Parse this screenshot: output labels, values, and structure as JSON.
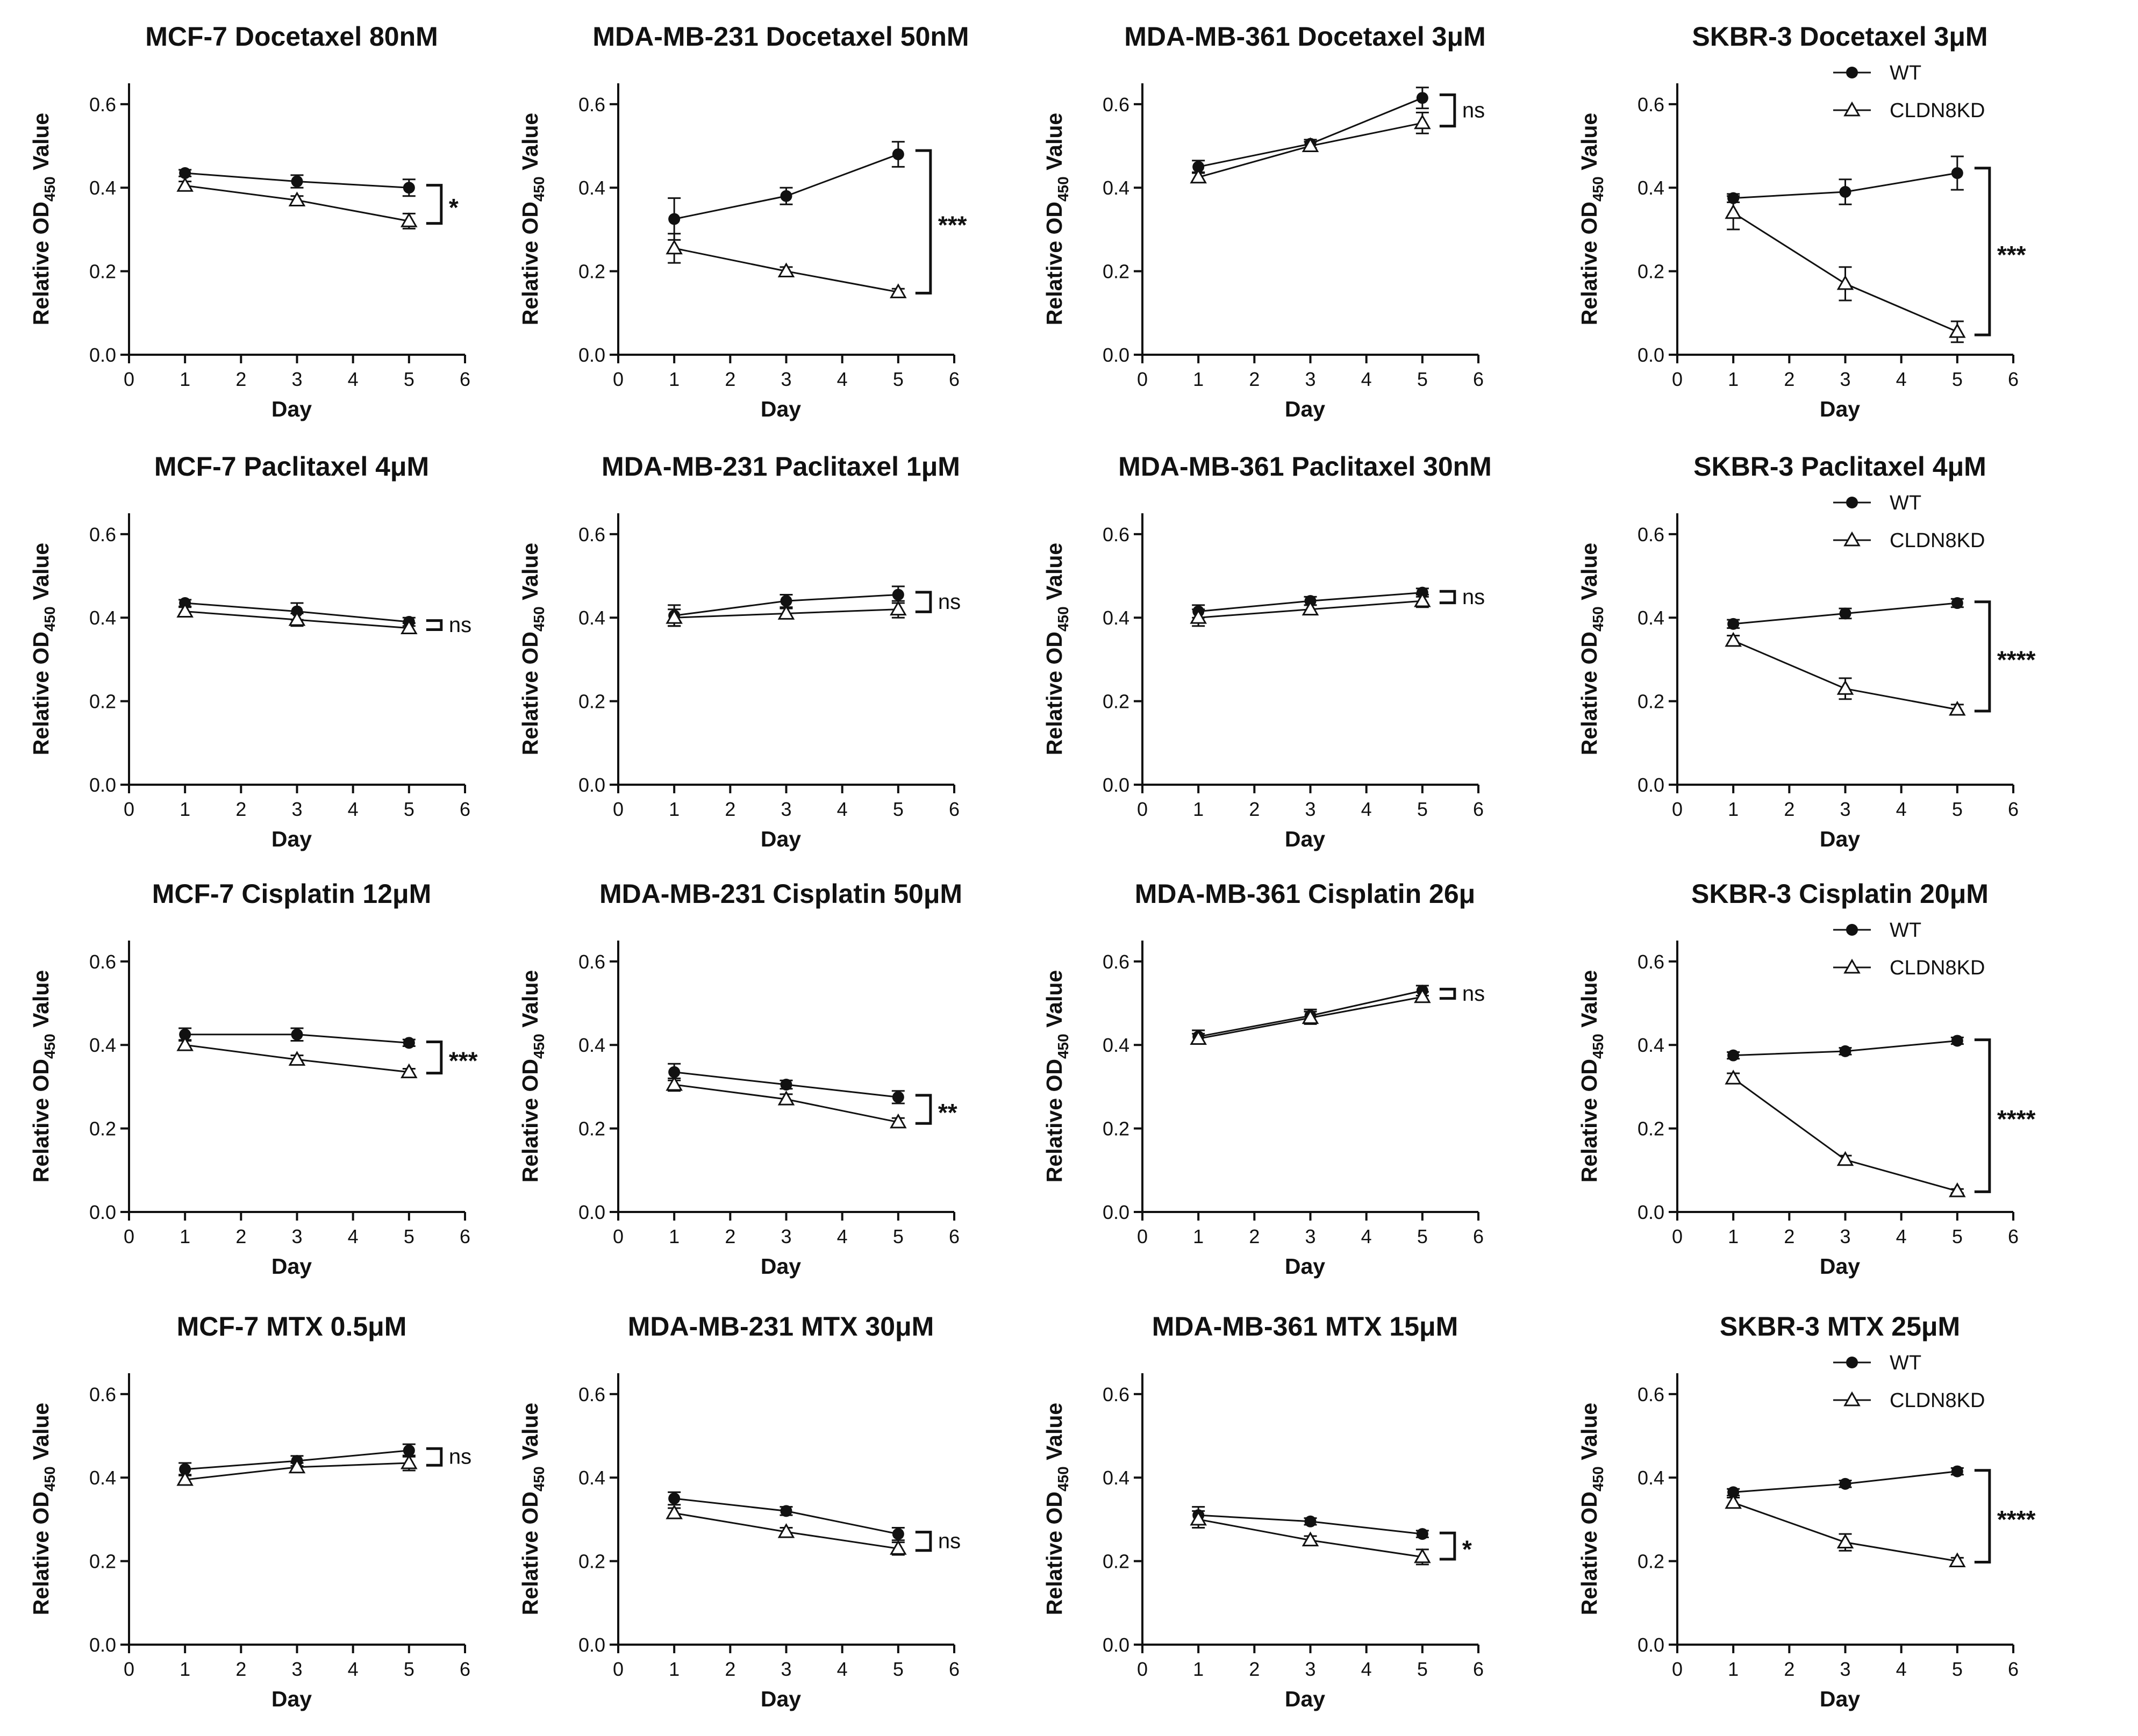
{
  "chart_data": [
    {
      "type": "line",
      "title": "MCF-7 Docetaxel 80nM",
      "xlabel": "Day",
      "ylabel": "Relative OD450 Value",
      "xlim": [
        0,
        6
      ],
      "ylim": [
        0,
        0.65
      ],
      "x": [
        1,
        3,
        5
      ],
      "series": [
        {
          "name": "WT",
          "values": [
            0.435,
            0.415,
            0.4
          ],
          "errors": [
            0.008,
            0.015,
            0.02
          ]
        },
        {
          "name": "CLDN8KD",
          "values": [
            0.405,
            0.37,
            0.32
          ],
          "errors": [
            0.01,
            0.01,
            0.018
          ]
        }
      ],
      "significance": "*",
      "legend": false
    },
    {
      "type": "line",
      "title": "MDA-MB-231 Docetaxel 50nM",
      "xlabel": "Day",
      "ylabel": "Relative OD450 Value",
      "xlim": [
        0,
        6
      ],
      "ylim": [
        0,
        0.65
      ],
      "x": [
        1,
        3,
        5
      ],
      "series": [
        {
          "name": "WT",
          "values": [
            0.325,
            0.38,
            0.48
          ],
          "errors": [
            0.05,
            0.02,
            0.03
          ]
        },
        {
          "name": "CLDN8KD",
          "values": [
            0.255,
            0.2,
            0.15
          ],
          "errors": [
            0.035,
            0.01,
            0.008
          ]
        }
      ],
      "significance": "***",
      "legend": false
    },
    {
      "type": "line",
      "title": "MDA-MB-361 Docetaxel 3μM",
      "xlabel": "Day",
      "ylabel": "Relative OD450 Value",
      "xlim": [
        0,
        6
      ],
      "ylim": [
        0,
        0.65
      ],
      "x": [
        1,
        3,
        5
      ],
      "series": [
        {
          "name": "WT",
          "values": [
            0.45,
            0.505,
            0.615
          ],
          "errors": [
            0.015,
            0.01,
            0.025
          ]
        },
        {
          "name": "CLDN8KD",
          "values": [
            0.425,
            0.5,
            0.555
          ],
          "errors": [
            0.012,
            0.01,
            0.025
          ]
        }
      ],
      "significance": "ns",
      "legend": false
    },
    {
      "type": "line",
      "title": "SKBR-3 Docetaxel 3μM",
      "xlabel": "Day",
      "ylabel": "Relative OD450 Value",
      "xlim": [
        0,
        6
      ],
      "ylim": [
        0,
        0.65
      ],
      "x": [
        1,
        3,
        5
      ],
      "series": [
        {
          "name": "WT",
          "values": [
            0.375,
            0.39,
            0.435
          ],
          "errors": [
            0.01,
            0.03,
            0.04
          ]
        },
        {
          "name": "CLDN8KD",
          "values": [
            0.34,
            0.17,
            0.055
          ],
          "errors": [
            0.04,
            0.04,
            0.025
          ]
        }
      ],
      "significance": "***",
      "legend": true
    },
    {
      "type": "line",
      "title": "MCF-7  Paclitaxel 4μM",
      "xlabel": "Day",
      "ylabel": "Relative OD450 Value",
      "xlim": [
        0,
        6
      ],
      "ylim": [
        0,
        0.65
      ],
      "x": [
        1,
        3,
        5
      ],
      "series": [
        {
          "name": "WT",
          "values": [
            0.435,
            0.415,
            0.39
          ],
          "errors": [
            0.008,
            0.02,
            0.01
          ]
        },
        {
          "name": "CLDN8KD",
          "values": [
            0.415,
            0.395,
            0.375
          ],
          "errors": [
            0.01,
            0.015,
            0.012
          ]
        }
      ],
      "significance": "ns",
      "legend": false
    },
    {
      "type": "line",
      "title": "MDA-MB-231 Paclitaxel 1μM",
      "xlabel": "Day",
      "ylabel": "Relative OD450 Value",
      "xlim": [
        0,
        6
      ],
      "ylim": [
        0,
        0.65
      ],
      "x": [
        1,
        3,
        5
      ],
      "series": [
        {
          "name": "WT",
          "values": [
            0.405,
            0.44,
            0.455
          ],
          "errors": [
            0.025,
            0.015,
            0.02
          ]
        },
        {
          "name": "CLDN8KD",
          "values": [
            0.4,
            0.41,
            0.42
          ],
          "errors": [
            0.02,
            0.012,
            0.02
          ]
        }
      ],
      "significance": "ns",
      "legend": false
    },
    {
      "type": "line",
      "title": "MDA-MB-361 Paclitaxel 30nM",
      "xlabel": "Day",
      "ylabel": "Relative OD450 Value",
      "xlim": [
        0,
        6
      ],
      "ylim": [
        0,
        0.65
      ],
      "x": [
        1,
        3,
        5
      ],
      "series": [
        {
          "name": "WT",
          "values": [
            0.415,
            0.44,
            0.46
          ],
          "errors": [
            0.015,
            0.01,
            0.01
          ]
        },
        {
          "name": "CLDN8KD",
          "values": [
            0.4,
            0.42,
            0.44
          ],
          "errors": [
            0.02,
            0.01,
            0.015
          ]
        }
      ],
      "significance": "ns",
      "legend": false
    },
    {
      "type": "line",
      "title": "SKBR-3 Paclitaxel 4μM",
      "xlabel": "Day",
      "ylabel": "Relative OD450 Value",
      "xlim": [
        0,
        6
      ],
      "ylim": [
        0,
        0.65
      ],
      "x": [
        1,
        3,
        5
      ],
      "series": [
        {
          "name": "WT",
          "values": [
            0.385,
            0.41,
            0.435
          ],
          "errors": [
            0.01,
            0.012,
            0.01
          ]
        },
        {
          "name": "CLDN8KD",
          "values": [
            0.345,
            0.23,
            0.18
          ],
          "errors": [
            0.012,
            0.025,
            0.012
          ]
        }
      ],
      "significance": "****",
      "legend": true
    },
    {
      "type": "line",
      "title": "MCF-7 Cisplatin 12μM",
      "xlabel": "Day",
      "ylabel": "Relative OD450 Value",
      "xlim": [
        0,
        6
      ],
      "ylim": [
        0,
        0.65
      ],
      "x": [
        1,
        3,
        5
      ],
      "series": [
        {
          "name": "WT",
          "values": [
            0.425,
            0.425,
            0.405
          ],
          "errors": [
            0.015,
            0.015,
            0.008
          ]
        },
        {
          "name": "CLDN8KD",
          "values": [
            0.4,
            0.365,
            0.335
          ],
          "errors": [
            0.012,
            0.01,
            0.008
          ]
        }
      ],
      "significance": "***",
      "legend": false
    },
    {
      "type": "line",
      "title": "MDA-MB-231 Cisplatin 50μM",
      "xlabel": "Day",
      "ylabel": "Relative OD450 Value",
      "xlim": [
        0,
        6
      ],
      "ylim": [
        0,
        0.65
      ],
      "x": [
        1,
        3,
        5
      ],
      "series": [
        {
          "name": "WT",
          "values": [
            0.335,
            0.305,
            0.275
          ],
          "errors": [
            0.02,
            0.01,
            0.015
          ]
        },
        {
          "name": "CLDN8KD",
          "values": [
            0.305,
            0.27,
            0.215
          ],
          "errors": [
            0.015,
            0.012,
            0.01
          ]
        }
      ],
      "significance": "**",
      "legend": false
    },
    {
      "type": "line",
      "title": "MDA-MB-361 Cisplatin 26μ",
      "xlabel": "Day",
      "ylabel": "Relative OD450 Value",
      "xlim": [
        0,
        6
      ],
      "ylim": [
        0,
        0.65
      ],
      "x": [
        1,
        3,
        5
      ],
      "series": [
        {
          "name": "WT",
          "values": [
            0.42,
            0.47,
            0.53
          ],
          "errors": [
            0.015,
            0.015,
            0.012
          ]
        },
        {
          "name": "CLDN8KD",
          "values": [
            0.415,
            0.465,
            0.515
          ],
          "errors": [
            0.012,
            0.015,
            0.012
          ]
        }
      ],
      "significance": "ns",
      "legend": false
    },
    {
      "type": "line",
      "title": "SKBR-3 Cisplatin 20μM",
      "xlabel": "Day",
      "ylabel": "Relative OD450 Value",
      "xlim": [
        0,
        6
      ],
      "ylim": [
        0,
        0.65
      ],
      "x": [
        1,
        3,
        5
      ],
      "series": [
        {
          "name": "WT",
          "values": [
            0.375,
            0.385,
            0.41
          ],
          "errors": [
            0.008,
            0.008,
            0.008
          ]
        },
        {
          "name": "CLDN8KD",
          "values": [
            0.32,
            0.125,
            0.05
          ],
          "errors": [
            0.012,
            0.01,
            0.005
          ]
        }
      ],
      "significance": "****",
      "legend": true
    },
    {
      "type": "line",
      "title": "MCF-7 MTX 0.5μM",
      "xlabel": "Day",
      "ylabel": "Relative OD450 Value",
      "xlim": [
        0,
        6
      ],
      "ylim": [
        0,
        0.65
      ],
      "x": [
        1,
        3,
        5
      ],
      "series": [
        {
          "name": "WT",
          "values": [
            0.42,
            0.44,
            0.465
          ],
          "errors": [
            0.015,
            0.012,
            0.015
          ]
        },
        {
          "name": "CLDN8KD",
          "values": [
            0.395,
            0.425,
            0.435
          ],
          "errors": [
            0.012,
            0.01,
            0.018
          ]
        }
      ],
      "significance": "ns",
      "legend": false
    },
    {
      "type": "line",
      "title": "MDA-MB-231 MTX 30μM",
      "xlabel": "Day",
      "ylabel": "Relative OD450 Value",
      "xlim": [
        0,
        6
      ],
      "ylim": [
        0,
        0.65
      ],
      "x": [
        1,
        3,
        5
      ],
      "series": [
        {
          "name": "WT",
          "values": [
            0.35,
            0.32,
            0.265
          ],
          "errors": [
            0.015,
            0.01,
            0.015
          ]
        },
        {
          "name": "CLDN8KD",
          "values": [
            0.315,
            0.27,
            0.23
          ],
          "errors": [
            0.012,
            0.01,
            0.015
          ]
        }
      ],
      "significance": "ns",
      "legend": false
    },
    {
      "type": "line",
      "title": "MDA-MB-361 MTX 15μM",
      "xlabel": "Day",
      "ylabel": "Relative OD450 Value",
      "xlim": [
        0,
        6
      ],
      "ylim": [
        0,
        0.65
      ],
      "x": [
        1,
        3,
        5
      ],
      "series": [
        {
          "name": "WT",
          "values": [
            0.31,
            0.295,
            0.265
          ],
          "errors": [
            0.02,
            0.008,
            0.008
          ]
        },
        {
          "name": "CLDN8KD",
          "values": [
            0.3,
            0.25,
            0.21
          ],
          "errors": [
            0.02,
            0.01,
            0.018
          ]
        }
      ],
      "significance": "*",
      "legend": false
    },
    {
      "type": "line",
      "title": "SKBR-3 MTX 25μM",
      "xlabel": "Day",
      "ylabel": "Relative OD450 Value",
      "xlim": [
        0,
        6
      ],
      "ylim": [
        0,
        0.65
      ],
      "x": [
        1,
        3,
        5
      ],
      "series": [
        {
          "name": "WT",
          "values": [
            0.365,
            0.385,
            0.415
          ],
          "errors": [
            0.008,
            0.008,
            0.008
          ]
        },
        {
          "name": "CLDN8KD",
          "values": [
            0.34,
            0.245,
            0.2
          ],
          "errors": [
            0.012,
            0.02,
            0.008
          ]
        }
      ],
      "significance": "****",
      "legend": true
    }
  ],
  "axis": {
    "x_ticks": [
      "0",
      "1",
      "2",
      "3",
      "4",
      "5",
      "6"
    ],
    "y_ticks": [
      "0.0",
      "0.2",
      "0.4",
      "0.6"
    ],
    "y_label_main": "Relative OD",
    "y_label_sub": "450",
    "y_label_tail": " Value"
  },
  "legend": {
    "wt": "WT",
    "kd": "CLDN8KD"
  },
  "colors": {
    "ink": "#111111",
    "background": "#ffffff"
  }
}
